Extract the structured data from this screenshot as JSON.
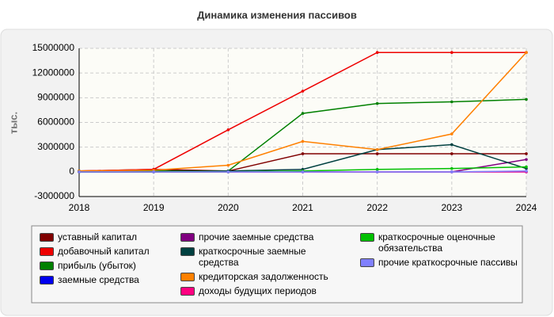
{
  "chart_data": {
    "type": "line",
    "title": "Динамика изменения пассивов",
    "ylabel": "тыс.",
    "x": [
      2018,
      2019,
      2020,
      2021,
      2022,
      2023,
      2024
    ],
    "xlim": [
      2018,
      2024
    ],
    "xticks": [
      2018,
      2019,
      2020,
      2021,
      2022,
      2023,
      2024
    ],
    "ylim": [
      -3000000,
      15000000
    ],
    "yticks": [
      -3000000,
      0,
      3000000,
      6000000,
      9000000,
      12000000,
      15000000
    ],
    "grid": true,
    "series": [
      {
        "name": "уставный капитал",
        "color": "#800000",
        "values": [
          100000,
          300000,
          100000,
          2200000,
          2200000,
          2200000,
          2200000
        ]
      },
      {
        "name": "добавочный капитал",
        "color": "#ee0000",
        "values": [
          100000,
          300000,
          5100000,
          9800000,
          14500000,
          14500000,
          14500000
        ]
      },
      {
        "name": "прибыль (убыток)",
        "color": "#008000",
        "values": [
          100000,
          100000,
          100000,
          7100000,
          8300000,
          8500000,
          8800000
        ]
      },
      {
        "name": "заемные средства",
        "color": "#0000ee",
        "values": [
          0,
          0,
          0,
          0,
          0,
          0,
          0
        ]
      },
      {
        "name": "прочие заемные средства",
        "color": "#800080",
        "values": [
          0,
          0,
          0,
          0,
          0,
          0,
          1500000
        ]
      },
      {
        "name": "краткосрочные заемные средства",
        "color": "#004040",
        "values": [
          0,
          0,
          100000,
          300000,
          2700000,
          3300000,
          400000
        ]
      },
      {
        "name": "кредиторская задолженность",
        "color": "#ff8000",
        "values": [
          100000,
          200000,
          800000,
          3700000,
          2700000,
          4600000,
          14500000
        ]
      },
      {
        "name": "доходы будущих периодов",
        "color": "#ff0080",
        "values": [
          0,
          0,
          0,
          0,
          0,
          0,
          0
        ]
      },
      {
        "name": "краткосрочные оценочные обязательства",
        "color": "#00c000",
        "values": [
          0,
          0,
          0,
          100000,
          300000,
          400000,
          600000
        ]
      },
      {
        "name": "прочие краткосрочные пассивы",
        "color": "#8080ff",
        "values": [
          0,
          0,
          0,
          0,
          0,
          0,
          100000
        ]
      }
    ]
  }
}
